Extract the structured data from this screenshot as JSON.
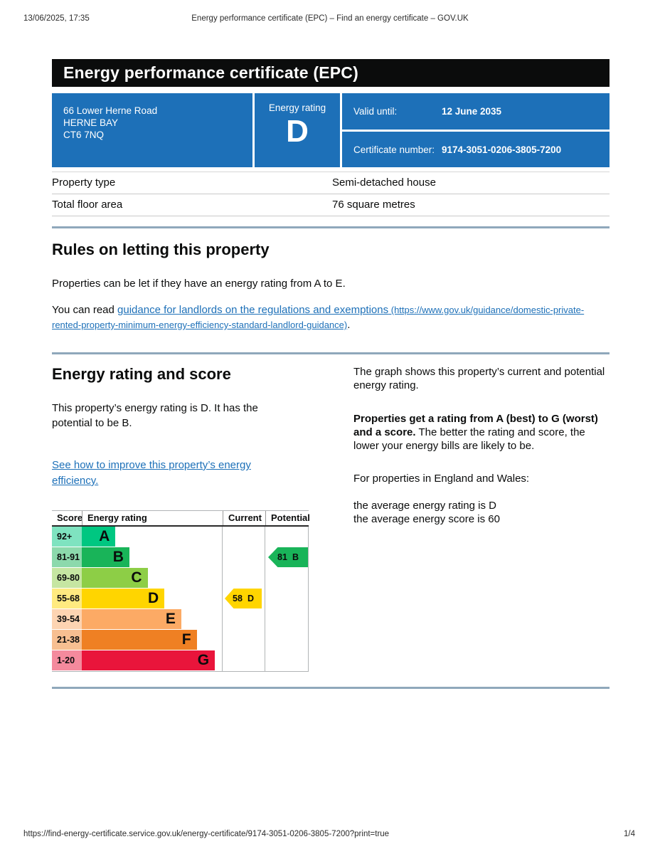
{
  "page": {
    "print_header": {
      "datetime": "13/06/2025, 17:35",
      "title": "Energy performance certificate (EPC) – Find an energy certificate – GOV.UK"
    },
    "print_footer": {
      "url": "https://find-energy-certificate.service.gov.uk/energy-certificate/9174-3051-0206-3805-7200?print=true",
      "page_number": "1/4"
    }
  },
  "banner": {
    "title": "Energy performance certificate (EPC)"
  },
  "summary_panel": {
    "panel_color": "#1d70b8",
    "address_lines": [
      "66 Lower Herne Road",
      "HERNE BAY",
      "CT6 7NQ"
    ],
    "energy_rating_label": "Energy rating",
    "energy_rating": "D",
    "valid_until_label": "Valid until:",
    "valid_until": "12 June 2035",
    "certificate_number_label": "Certificate number:",
    "certificate_number": "9174-3051-0206-3805-7200"
  },
  "property_table": {
    "rows": [
      {
        "label": "Property type",
        "value": "Semi-detached house"
      },
      {
        "label": "Total floor area",
        "value": "76 square metres"
      }
    ]
  },
  "rules_section": {
    "heading": "Rules on letting this property",
    "paragraph1": "Properties can be let if they have an energy rating from A to E.",
    "paragraph2_prefix": "You can read ",
    "link_text": "guidance for landlords on the regulations and exemptions",
    "link_url_text": " (https://www.gov.uk/guidance/domestic-private-rented-property-minimum-energy-efficiency-standard-landlord-guidance)",
    "paragraph2_suffix": "."
  },
  "rating_section": {
    "heading": "Energy rating and score",
    "intro": "This property’s energy rating is D. It has the potential to be B.",
    "improve_link": "See how to improve this property’s energy efficiency.",
    "graph_intro": "The graph shows this property’s current and potential energy rating.",
    "explain_bold": "Properties get a rating from A (best) to G (worst) and a score.",
    "explain_rest": " The better the rating and score, the lower your energy bills are likely to be.",
    "england_wales_line": "For properties in England and Wales:",
    "average_rating_line": "the average energy rating is D",
    "average_score_line": "the average energy score is 60"
  },
  "chart_data": {
    "type": "bar",
    "title": "Energy rating and score chart",
    "columns": [
      "Score",
      "Energy rating",
      "Current",
      "Potential"
    ],
    "bands": [
      {
        "score": "92+",
        "letter": "A",
        "color": "#00c781",
        "tint": "#7fe3c0",
        "width_pct": 24
      },
      {
        "score": "81-91",
        "letter": "B",
        "color": "#19b459",
        "tint": "#8cd9ac",
        "width_pct": 34
      },
      {
        "score": "69-80",
        "letter": "C",
        "color": "#8dce46",
        "tint": "#c6e6a2",
        "width_pct": 47
      },
      {
        "score": "55-68",
        "letter": "D",
        "color": "#ffd500",
        "tint": "#ffea80",
        "width_pct": 59
      },
      {
        "score": "39-54",
        "letter": "E",
        "color": "#fcaa65",
        "tint": "#fdd4b2",
        "width_pct": 71
      },
      {
        "score": "21-38",
        "letter": "F",
        "color": "#ef8023",
        "tint": "#f7bf91",
        "width_pct": 82
      },
      {
        "score": "1-20",
        "letter": "G",
        "color": "#e9153b",
        "tint": "#f48a9d",
        "width_pct": 95
      }
    ],
    "current": {
      "score": 58,
      "letter": "D",
      "band_index": 3,
      "color": "#ffd500"
    },
    "potential": {
      "score": 81,
      "letter": "B",
      "band_index": 1,
      "color": "#19b459"
    }
  },
  "colors": {
    "govuk_blue": "#1d70b8",
    "rule_blue": "#8fa8bb",
    "banner_bg": "#0b0c0c"
  }
}
